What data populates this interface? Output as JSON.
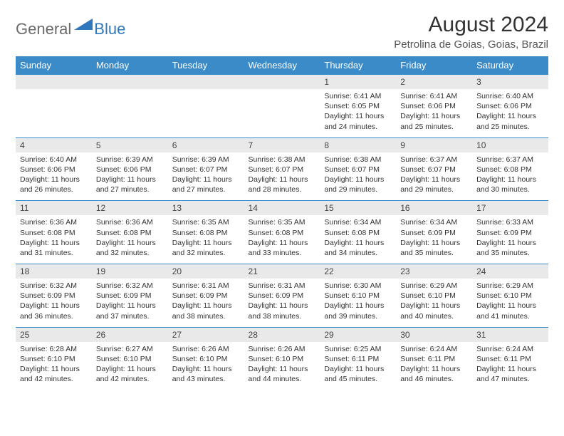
{
  "logo": {
    "general": "General",
    "blue": "Blue"
  },
  "title": "August 2024",
  "location": "Petrolina de Goias, Goias, Brazil",
  "colors": {
    "header_bg": "#3b8bc9",
    "header_text": "#ffffff",
    "daynum_bg": "#e9e9e9",
    "border": "#3b8bc9",
    "logo_gray": "#6b6b6b",
    "logo_blue": "#2f78bd",
    "background_color": "#ffffff"
  },
  "typography": {
    "title_fontsize": 30,
    "location_fontsize": 15,
    "dow_fontsize": 13,
    "daynum_fontsize": 12,
    "content_fontsize": 10.5
  },
  "dow": [
    "Sunday",
    "Monday",
    "Tuesday",
    "Wednesday",
    "Thursday",
    "Friday",
    "Saturday"
  ],
  "weeks": [
    [
      null,
      null,
      null,
      null,
      {
        "n": "1",
        "sunrise": "6:41 AM",
        "sunset": "6:05 PM",
        "dl": "11 hours and 24 minutes."
      },
      {
        "n": "2",
        "sunrise": "6:41 AM",
        "sunset": "6:06 PM",
        "dl": "11 hours and 25 minutes."
      },
      {
        "n": "3",
        "sunrise": "6:40 AM",
        "sunset": "6:06 PM",
        "dl": "11 hours and 25 minutes."
      }
    ],
    [
      {
        "n": "4",
        "sunrise": "6:40 AM",
        "sunset": "6:06 PM",
        "dl": "11 hours and 26 minutes."
      },
      {
        "n": "5",
        "sunrise": "6:39 AM",
        "sunset": "6:06 PM",
        "dl": "11 hours and 27 minutes."
      },
      {
        "n": "6",
        "sunrise": "6:39 AM",
        "sunset": "6:07 PM",
        "dl": "11 hours and 27 minutes."
      },
      {
        "n": "7",
        "sunrise": "6:38 AM",
        "sunset": "6:07 PM",
        "dl": "11 hours and 28 minutes."
      },
      {
        "n": "8",
        "sunrise": "6:38 AM",
        "sunset": "6:07 PM",
        "dl": "11 hours and 29 minutes."
      },
      {
        "n": "9",
        "sunrise": "6:37 AM",
        "sunset": "6:07 PM",
        "dl": "11 hours and 29 minutes."
      },
      {
        "n": "10",
        "sunrise": "6:37 AM",
        "sunset": "6:08 PM",
        "dl": "11 hours and 30 minutes."
      }
    ],
    [
      {
        "n": "11",
        "sunrise": "6:36 AM",
        "sunset": "6:08 PM",
        "dl": "11 hours and 31 minutes."
      },
      {
        "n": "12",
        "sunrise": "6:36 AM",
        "sunset": "6:08 PM",
        "dl": "11 hours and 32 minutes."
      },
      {
        "n": "13",
        "sunrise": "6:35 AM",
        "sunset": "6:08 PM",
        "dl": "11 hours and 32 minutes."
      },
      {
        "n": "14",
        "sunrise": "6:35 AM",
        "sunset": "6:08 PM",
        "dl": "11 hours and 33 minutes."
      },
      {
        "n": "15",
        "sunrise": "6:34 AM",
        "sunset": "6:08 PM",
        "dl": "11 hours and 34 minutes."
      },
      {
        "n": "16",
        "sunrise": "6:34 AM",
        "sunset": "6:09 PM",
        "dl": "11 hours and 35 minutes."
      },
      {
        "n": "17",
        "sunrise": "6:33 AM",
        "sunset": "6:09 PM",
        "dl": "11 hours and 35 minutes."
      }
    ],
    [
      {
        "n": "18",
        "sunrise": "6:32 AM",
        "sunset": "6:09 PM",
        "dl": "11 hours and 36 minutes."
      },
      {
        "n": "19",
        "sunrise": "6:32 AM",
        "sunset": "6:09 PM",
        "dl": "11 hours and 37 minutes."
      },
      {
        "n": "20",
        "sunrise": "6:31 AM",
        "sunset": "6:09 PM",
        "dl": "11 hours and 38 minutes."
      },
      {
        "n": "21",
        "sunrise": "6:31 AM",
        "sunset": "6:09 PM",
        "dl": "11 hours and 38 minutes."
      },
      {
        "n": "22",
        "sunrise": "6:30 AM",
        "sunset": "6:10 PM",
        "dl": "11 hours and 39 minutes."
      },
      {
        "n": "23",
        "sunrise": "6:29 AM",
        "sunset": "6:10 PM",
        "dl": "11 hours and 40 minutes."
      },
      {
        "n": "24",
        "sunrise": "6:29 AM",
        "sunset": "6:10 PM",
        "dl": "11 hours and 41 minutes."
      }
    ],
    [
      {
        "n": "25",
        "sunrise": "6:28 AM",
        "sunset": "6:10 PM",
        "dl": "11 hours and 42 minutes."
      },
      {
        "n": "26",
        "sunrise": "6:27 AM",
        "sunset": "6:10 PM",
        "dl": "11 hours and 42 minutes."
      },
      {
        "n": "27",
        "sunrise": "6:26 AM",
        "sunset": "6:10 PM",
        "dl": "11 hours and 43 minutes."
      },
      {
        "n": "28",
        "sunrise": "6:26 AM",
        "sunset": "6:10 PM",
        "dl": "11 hours and 44 minutes."
      },
      {
        "n": "29",
        "sunrise": "6:25 AM",
        "sunset": "6:11 PM",
        "dl": "11 hours and 45 minutes."
      },
      {
        "n": "30",
        "sunrise": "6:24 AM",
        "sunset": "6:11 PM",
        "dl": "11 hours and 46 minutes."
      },
      {
        "n": "31",
        "sunrise": "6:24 AM",
        "sunset": "6:11 PM",
        "dl": "11 hours and 47 minutes."
      }
    ]
  ],
  "labels": {
    "sunrise": "Sunrise: ",
    "sunset": "Sunset: ",
    "daylight": "Daylight: "
  }
}
